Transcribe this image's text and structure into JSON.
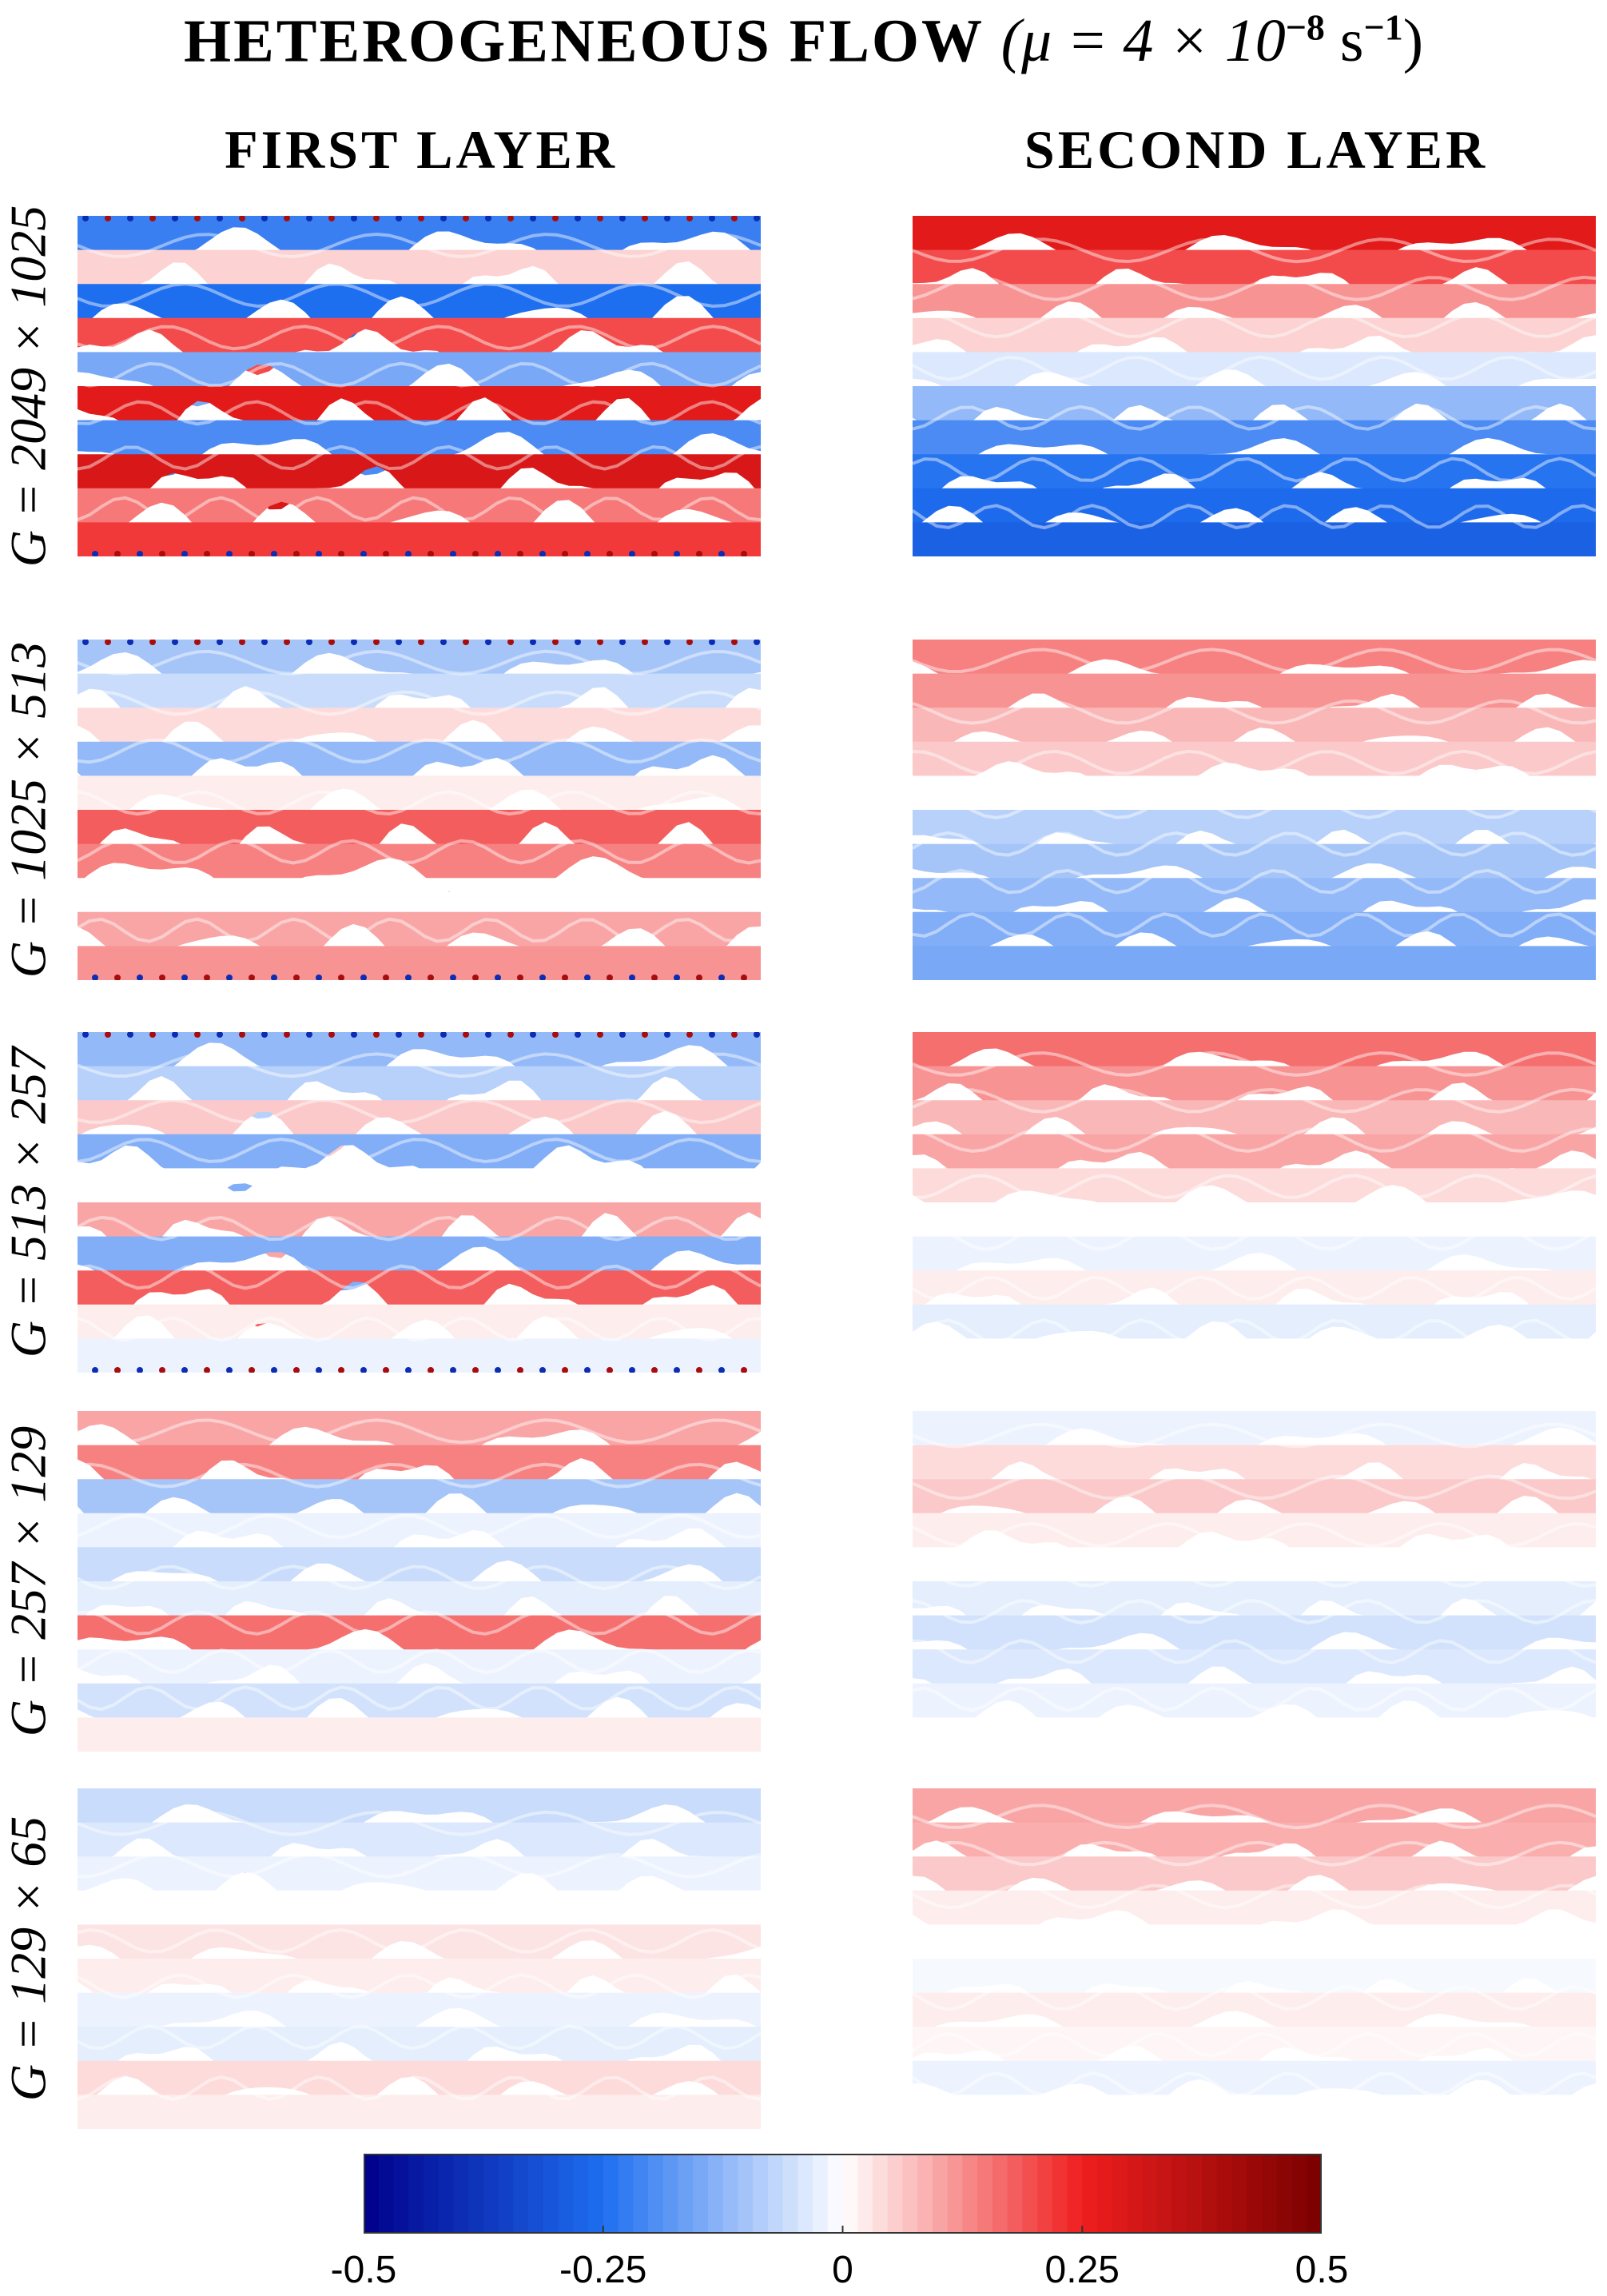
{
  "title": {
    "text": "HETEROGENEOUS FLOW",
    "math": "(μ = 4 × 10",
    "exp": "−8",
    "unit": "s",
    "unit_exp": "−1",
    "close": ")"
  },
  "columns": [
    "FIRST LAYER",
    "SECOND LAYER"
  ],
  "rows": [
    "G = 2049 × 1025",
    "G = 1025 × 513",
    "G = 513 × 257",
    "G = 257 × 129",
    "G = 129 × 65"
  ],
  "colors": {
    "neg_max": "#00008b",
    "neg_mid": "#1e6ef0",
    "zero": "#ffffff",
    "pos_mid": "#f01e1e",
    "pos_max": "#7a0000"
  },
  "chart_data": {
    "type": "heatmap",
    "title": "HETEROGENEOUS FLOW (μ = 4 × 10^-8 s^-1)",
    "colorbar": {
      "min": -0.5,
      "max": 0.5,
      "ticks": [
        -0.5,
        -0.25,
        0,
        0.25,
        0.5
      ],
      "tick_labels": [
        "-0.5",
        "-0.25",
        "0",
        "0.25",
        "0.5"
      ],
      "colormap": "blue-white-red"
    },
    "panels": [
      {
        "layer": "FIRST LAYER",
        "grid": "G = 2049 × 1025",
        "bands": [
          -0.22,
          0.05,
          -0.25,
          0.2,
          -0.15,
          0.28,
          -0.2,
          0.3,
          0.15,
          0.22
        ],
        "wave_amp": 0.11,
        "edge_vortices": true
      },
      {
        "layer": "SECOND LAYER",
        "grid": "G = 2049 × 1025",
        "bands": [
          0.28,
          0.2,
          0.12,
          0.05,
          -0.04,
          -0.12,
          -0.2,
          -0.24,
          -0.26,
          -0.28
        ],
        "wave_amp": 0.05,
        "edge_vortices": false
      },
      {
        "layer": "FIRST LAYER",
        "grid": "G = 1025 × 513",
        "bands": [
          -0.1,
          -0.06,
          0.04,
          -0.12,
          0.02,
          0.18,
          0.14,
          0.0,
          0.1,
          0.12
        ],
        "wave_amp": 0.1,
        "edge_vortices": true
      },
      {
        "layer": "SECOND LAYER",
        "grid": "G = 1025 × 513",
        "bands": [
          0.14,
          0.12,
          0.08,
          0.06,
          0.0,
          -0.08,
          -0.1,
          -0.12,
          -0.14,
          -0.15
        ],
        "wave_amp": 0.03,
        "edge_vortices": false
      },
      {
        "layer": "FIRST LAYER",
        "grid": "G = 513 × 257",
        "bands": [
          -0.12,
          -0.08,
          0.06,
          -0.14,
          0.0,
          0.1,
          -0.14,
          0.18,
          0.02,
          -0.02
        ],
        "wave_amp": 0.12,
        "edge_vortices": true
      },
      {
        "layer": "SECOND LAYER",
        "grid": "G = 513 × 257",
        "bands": [
          0.16,
          0.12,
          0.08,
          0.1,
          0.04,
          0.0,
          -0.02,
          0.02,
          -0.03,
          0.0
        ],
        "wave_amp": 0.06,
        "edge_vortices": false
      },
      {
        "layer": "FIRST LAYER",
        "grid": "G = 257 × 129",
        "bands": [
          0.1,
          0.14,
          -0.1,
          -0.02,
          -0.06,
          -0.03,
          0.16,
          -0.02,
          -0.05,
          0.02
        ],
        "wave_amp": 0.09,
        "edge_vortices": false
      },
      {
        "layer": "SECOND LAYER",
        "grid": "G = 257 × 129",
        "bands": [
          -0.02,
          0.04,
          0.06,
          0.02,
          0.0,
          -0.03,
          -0.05,
          -0.04,
          -0.02,
          0.0
        ],
        "wave_amp": 0.06,
        "edge_vortices": false
      },
      {
        "layer": "FIRST LAYER",
        "grid": "G = 129 × 65",
        "bands": [
          -0.06,
          -0.04,
          -0.02,
          0.0,
          0.03,
          0.02,
          -0.02,
          -0.03,
          0.04,
          0.02
        ],
        "wave_amp": 0.07,
        "edge_vortices": false
      },
      {
        "layer": "SECOND LAYER",
        "grid": "G = 129 × 65",
        "bands": [
          0.1,
          0.09,
          0.06,
          0.02,
          0.0,
          -0.01,
          0.02,
          0.01,
          -0.02,
          0.0
        ],
        "wave_amp": 0.04,
        "edge_vortices": false
      }
    ]
  }
}
